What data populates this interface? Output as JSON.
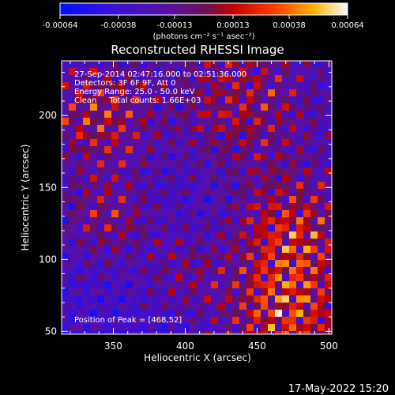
{
  "chart_data": {
    "type": "heatmap",
    "title": "Reconstructed RHESSI Image",
    "xlabel": "Heliocentric X (arcsec)",
    "ylabel": "Heliocentric Y (arcsec)",
    "xlim": [
      314,
      502
    ],
    "ylim": [
      48,
      238
    ],
    "x_ticks": [
      350,
      400,
      450,
      500
    ],
    "y_ticks": [
      50,
      100,
      150,
      200
    ],
    "colorbar": {
      "unit_label": "(photons cm⁻² s⁻¹ asec⁻²)",
      "tick_labels": [
        "-0.00064",
        "-0.00038",
        "-0.00013",
        "0.00013",
        "0.00038",
        "0.00064"
      ],
      "range": [
        -0.00064,
        0.00064
      ],
      "colormap": "blue-purple-red-yellow-white"
    },
    "annotations": [
      "27-Sep-2014 02:47:16.000 to 02:51:36.000",
      "Detectors: 3F 6F 9F, Att 0",
      "Energy Range: 25.0 - 50.0 keV",
      "Clean     Total counts: 1.66E+03"
    ],
    "peak_label": "Position of Peak = [468,52]",
    "peak": [
      468,
      52
    ],
    "footer_date": "17-May-2022 15:20"
  }
}
